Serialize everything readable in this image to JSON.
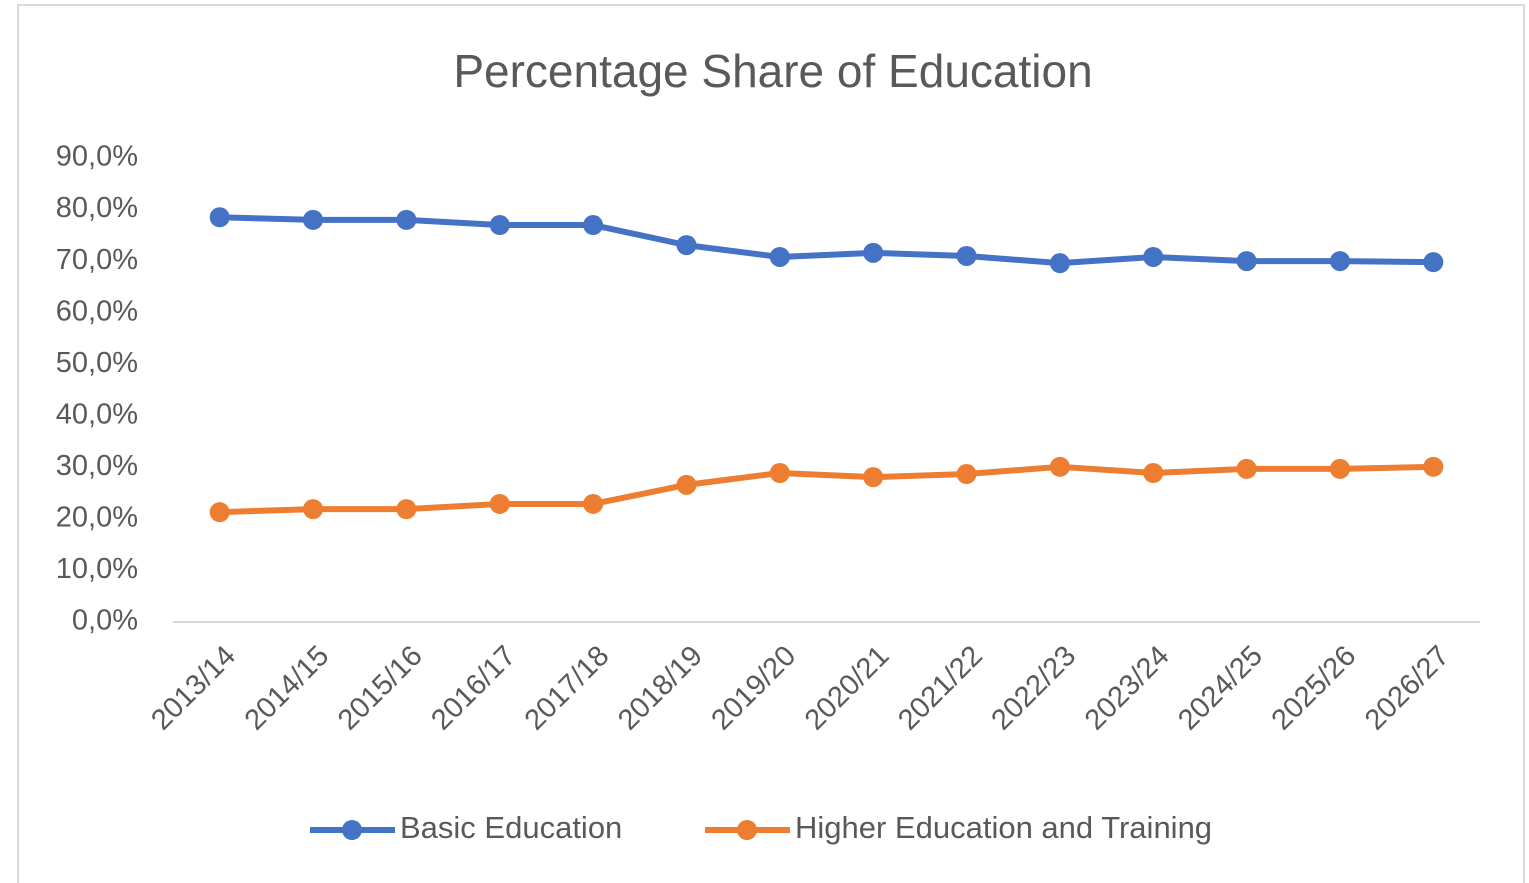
{
  "chart_data": {
    "type": "line",
    "title": "Percentage Share of Education",
    "categories": [
      "2013/14",
      "2014/15",
      "2015/16",
      "2016/17",
      "2017/18",
      "2018/19",
      "2019/20",
      "2020/21",
      "2021/22",
      "2022/23",
      "2023/24",
      "2024/25",
      "2025/26",
      "2026/27"
    ],
    "series": [
      {
        "name": "Basic Education",
        "color": "#4472c4",
        "values": [
          78.5,
          78.0,
          78.0,
          77.0,
          77.0,
          73.1,
          70.8,
          71.6,
          71.0,
          69.6,
          70.8,
          70.0,
          70.0,
          69.8
        ]
      },
      {
        "name": "Higher Education and Training",
        "color": "#ed7d31",
        "values": [
          21.3,
          21.9,
          21.9,
          22.9,
          22.9,
          26.6,
          28.9,
          28.1,
          28.7,
          30.1,
          28.9,
          29.7,
          29.7,
          30.1
        ]
      }
    ],
    "ylim": [
      0,
      90
    ],
    "yticks": [
      {
        "value": 0,
        "label": "0,0%"
      },
      {
        "value": 10,
        "label": "10,0%"
      },
      {
        "value": 20,
        "label": "20,0%"
      },
      {
        "value": 30,
        "label": "30,0%"
      },
      {
        "value": 40,
        "label": "40,0%"
      },
      {
        "value": 50,
        "label": "50,0%"
      },
      {
        "value": 60,
        "label": "60,0%"
      },
      {
        "value": 70,
        "label": "70,0%"
      },
      {
        "value": 80,
        "label": "80,0%"
      },
      {
        "value": 90,
        "label": "90,0%"
      }
    ],
    "grid": false,
    "legend": "bottom"
  }
}
